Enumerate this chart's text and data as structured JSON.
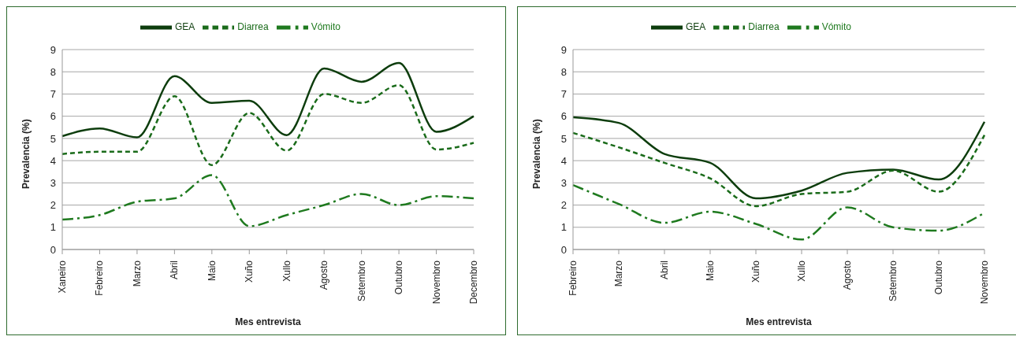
{
  "chart_data": [
    {
      "type": "line",
      "xlabel": "Mes entrevista",
      "ylabel": "Prevalencia (%)",
      "categories": [
        "Xaneiro",
        "Febreiro",
        "Marzo",
        "Abril",
        "Maio",
        "Xuño",
        "Xullo",
        "Agosto",
        "Setembro",
        "Outubro",
        "Novembro",
        "Decembro"
      ],
      "ylim": [
        0,
        9
      ],
      "yticks": [
        0,
        1,
        2,
        3,
        4,
        5,
        6,
        7,
        8,
        9
      ],
      "grid": "y",
      "legend": "top",
      "marker": "none",
      "series": [
        {
          "name": "GEA",
          "color": "#0d3d0d",
          "line_style": "solid",
          "values": [
            5.1,
            5.45,
            5.05,
            7.8,
            6.6,
            6.7,
            5.15,
            8.15,
            7.55,
            8.4,
            5.3,
            6.0
          ]
        },
        {
          "name": "Diarrea",
          "color": "#1a6b1a",
          "line_style": "dashed",
          "values": [
            4.3,
            4.4,
            4.4,
            6.9,
            3.8,
            6.15,
            4.45,
            7.0,
            6.6,
            7.4,
            4.5,
            4.8
          ]
        },
        {
          "name": "Vómito",
          "color": "#1f7a1f",
          "line_style": "dashdot",
          "values": [
            1.35,
            1.55,
            2.15,
            2.3,
            3.35,
            1.05,
            1.55,
            2.0,
            2.5,
            2.0,
            2.4,
            2.3
          ]
        }
      ]
    },
    {
      "type": "line",
      "xlabel": "Mes entrevista",
      "ylabel": "Prevalencia (%)",
      "categories": [
        "Febreiro",
        "Marzo",
        "Abril",
        "Maio",
        "Xuño",
        "Xullo",
        "Agosto",
        "Setembro",
        "Outubro",
        "Novembro"
      ],
      "ylim": [
        0,
        9
      ],
      "yticks": [
        0,
        1,
        2,
        3,
        4,
        5,
        6,
        7,
        8,
        9
      ],
      "grid": "y",
      "legend": "top",
      "marker": "none",
      "series": [
        {
          "name": "GEA",
          "color": "#0d3d0d",
          "line_style": "solid",
          "values": [
            5.95,
            5.7,
            4.3,
            3.9,
            2.3,
            2.65,
            3.45,
            3.6,
            3.15,
            5.75
          ]
        },
        {
          "name": "Diarrea",
          "color": "#1a6b1a",
          "line_style": "dashed",
          "values": [
            5.25,
            4.6,
            3.9,
            3.2,
            1.95,
            2.5,
            2.6,
            3.55,
            2.6,
            5.15
          ]
        },
        {
          "name": "Vómito",
          "color": "#1f7a1f",
          "line_style": "dashdot",
          "values": [
            2.9,
            2.05,
            1.2,
            1.7,
            1.15,
            0.45,
            1.9,
            1.0,
            0.85,
            1.65
          ]
        }
      ]
    }
  ]
}
